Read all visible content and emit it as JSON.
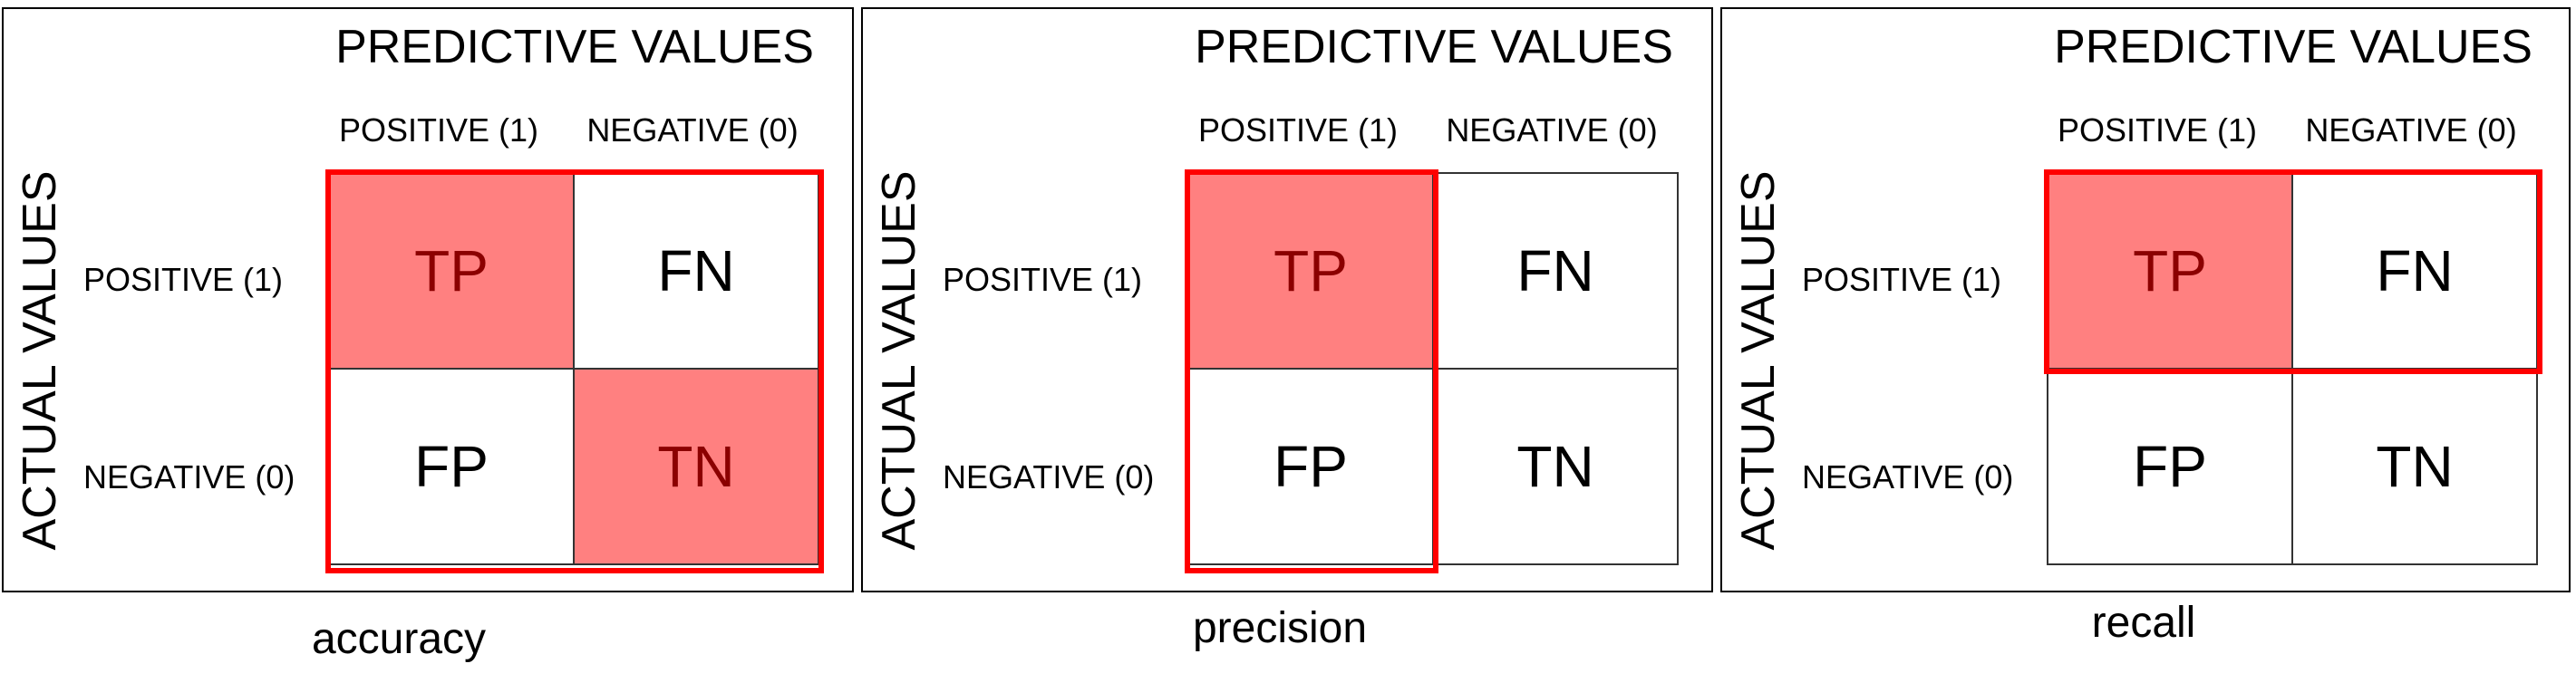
{
  "panels": [
    {
      "predictive_title": "PREDICTIVE VALUES",
      "pred_positive": "POSITIVE (1)",
      "pred_negative": "NEGATIVE (0)",
      "actual_title": "ACTUAL VALUES",
      "actual_positive": "POSITIVE (1)",
      "actual_negative": "NEGATIVE (0)",
      "cells": {
        "tp": "TP",
        "fn": "FN",
        "fp": "FP",
        "tn": "TN"
      },
      "highlighted": [
        "TP",
        "TN"
      ],
      "metric": "accuracy"
    },
    {
      "predictive_title": "PREDICTIVE VALUES",
      "pred_positive": "POSITIVE (1)",
      "pred_negative": "NEGATIVE (0)",
      "actual_title": "ACTUAL VALUES",
      "actual_positive": "POSITIVE (1)",
      "actual_negative": "NEGATIVE (0)",
      "cells": {
        "tp": "TP",
        "fn": "FN",
        "fp": "FP",
        "tn": "TN"
      },
      "highlighted": [
        "TP"
      ],
      "metric": "precision"
    },
    {
      "predictive_title": "PREDICTIVE VALUES",
      "pred_positive": "POSITIVE (1)",
      "pred_negative": "NEGATIVE (0)",
      "actual_title": "ACTUAL VALUES",
      "actual_positive": "POSITIVE (1)",
      "actual_negative": "NEGATIVE (0)",
      "cells": {
        "tp": "TP",
        "fn": "FN",
        "fp": "FP",
        "tn": "TN"
      },
      "highlighted": [
        "TP"
      ],
      "metric": "recall"
    }
  ],
  "colors": {
    "highlight_fill": "#ff8080",
    "highlight_text": "#8b0000",
    "frame": "#ff0000"
  }
}
